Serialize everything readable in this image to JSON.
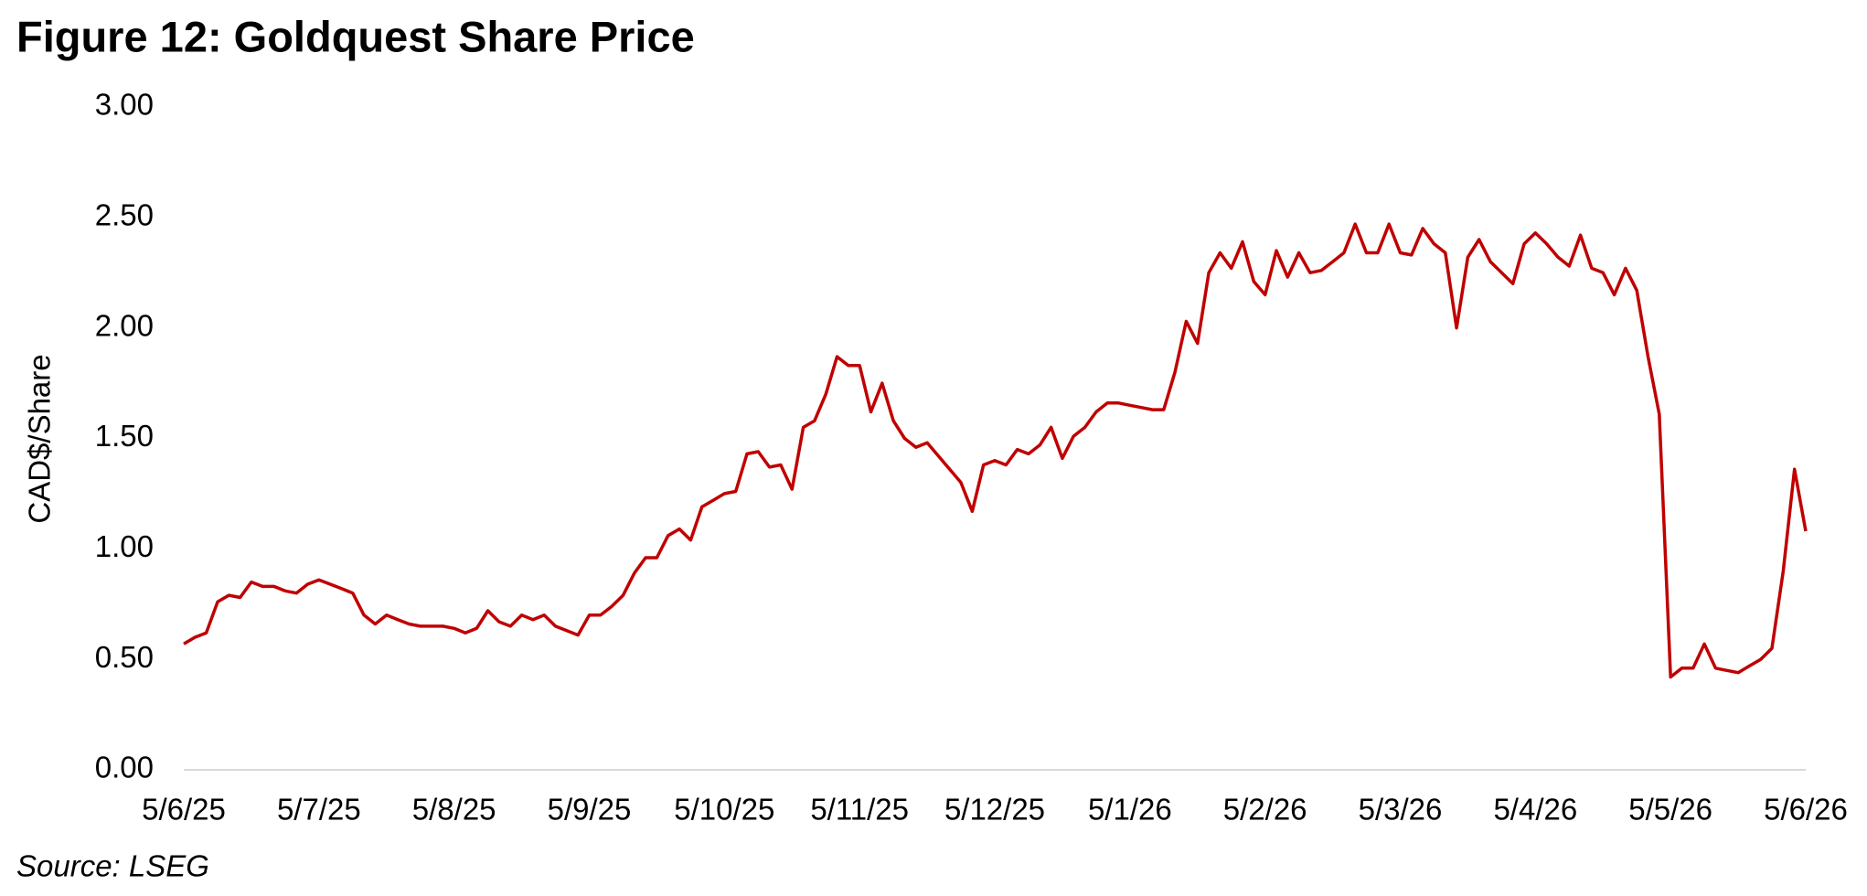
{
  "chart_data": {
    "type": "line",
    "title": "Figure 12: Goldquest Share Price",
    "y_label": "CAD$/Share",
    "source": "Source: LSEG",
    "categories": [
      "5/6/25",
      null,
      null,
      null,
      null,
      null,
      null,
      null,
      null,
      null,
      null,
      null,
      "5/7/25",
      null,
      null,
      null,
      null,
      null,
      null,
      null,
      null,
      null,
      null,
      null,
      "5/8/25",
      null,
      null,
      null,
      null,
      null,
      null,
      null,
      null,
      null,
      null,
      null,
      "5/9/25",
      null,
      null,
      null,
      null,
      null,
      null,
      null,
      null,
      null,
      null,
      null,
      "5/10/25",
      null,
      null,
      null,
      null,
      null,
      null,
      null,
      null,
      null,
      null,
      null,
      "5/11/25",
      null,
      null,
      null,
      null,
      null,
      null,
      null,
      null,
      null,
      null,
      null,
      "5/12/25",
      null,
      null,
      null,
      null,
      null,
      null,
      null,
      null,
      null,
      null,
      null,
      "5/1/26",
      null,
      null,
      null,
      null,
      null,
      null,
      null,
      null,
      null,
      null,
      null,
      "5/2/26",
      null,
      null,
      null,
      null,
      null,
      null,
      null,
      null,
      null,
      null,
      null,
      "5/3/26",
      null,
      null,
      null,
      null,
      null,
      null,
      null,
      null,
      null,
      null,
      null,
      "5/4/26",
      null,
      null,
      null,
      null,
      null,
      null,
      null,
      null,
      null,
      null,
      null,
      "5/5/26",
      null,
      null,
      null,
      null,
      null,
      null,
      null,
      null,
      null,
      null,
      null,
      "5/6/26"
    ],
    "series": [
      {
        "name": "Goldquest",
        "color": "#c00000",
        "values": [
          0.57,
          0.6,
          0.62,
          0.76,
          0.79,
          0.78,
          0.85,
          0.83,
          0.83,
          0.81,
          0.8,
          0.84,
          0.86,
          0.84,
          0.82,
          0.8,
          0.7,
          0.66,
          0.7,
          0.68,
          0.66,
          0.65,
          0.65,
          0.65,
          0.64,
          0.62,
          0.64,
          0.72,
          0.67,
          0.65,
          0.7,
          0.68,
          0.7,
          0.65,
          0.63,
          0.61,
          0.7,
          0.7,
          0.74,
          0.79,
          0.89,
          0.96,
          0.96,
          1.06,
          1.09,
          1.04,
          1.19,
          1.22,
          1.25,
          1.26,
          1.43,
          1.44,
          1.37,
          1.38,
          1.27,
          1.55,
          1.58,
          1.7,
          1.87,
          1.83,
          1.83,
          1.62,
          1.75,
          1.58,
          1.5,
          1.46,
          1.48,
          1.42,
          1.36,
          1.3,
          1.17,
          1.38,
          1.4,
          1.38,
          1.45,
          1.43,
          1.47,
          1.55,
          1.41,
          1.51,
          1.55,
          1.62,
          1.66,
          1.66,
          1.65,
          1.64,
          1.63,
          1.63,
          1.8,
          2.03,
          1.93,
          2.25,
          2.34,
          2.27,
          2.39,
          2.21,
          2.15,
          2.35,
          2.23,
          2.34,
          2.25,
          2.26,
          2.3,
          2.34,
          2.47,
          2.34,
          2.34,
          2.47,
          2.34,
          2.33,
          2.45,
          2.38,
          2.34,
          2.0,
          2.32,
          2.4,
          2.3,
          2.25,
          2.2,
          2.38,
          2.43,
          2.38,
          2.32,
          2.28,
          2.42,
          2.27,
          2.25,
          2.15,
          2.27,
          2.17,
          1.87,
          1.61,
          0.42,
          0.46,
          0.46,
          0.57,
          0.46,
          0.45,
          0.44,
          0.47,
          0.5,
          0.55,
          0.9,
          1.36,
          1.08
        ]
      }
    ],
    "ylim": [
      0,
      3
    ],
    "yticks": [
      {
        "value": 0,
        "label": "0.00"
      },
      {
        "value": 0.5,
        "label": "0.50"
      },
      {
        "value": 1,
        "label": "1.00"
      },
      {
        "value": 1.5,
        "label": "1.50"
      },
      {
        "value": 2,
        "label": "2.00"
      },
      {
        "value": 2.5,
        "label": "2.50"
      },
      {
        "value": 3,
        "label": "3.00"
      }
    ],
    "grid": false
  }
}
